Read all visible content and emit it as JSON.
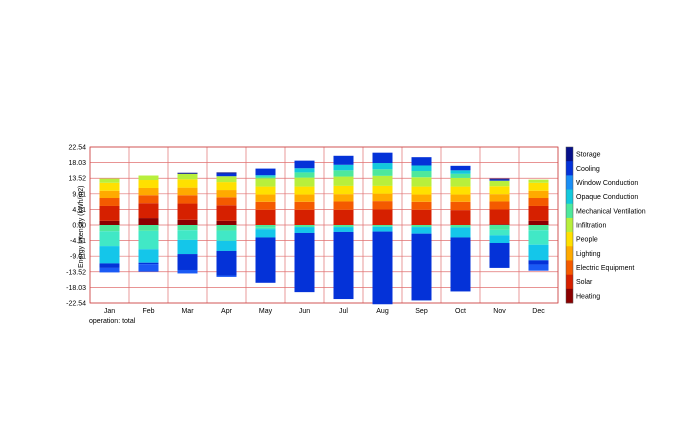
{
  "chart_data": {
    "type": "bar",
    "stacked": true,
    "ylabel": "Energy Intensity (kWh/m2)",
    "xlabel": "operation: total",
    "yticks": [
      "22.54",
      "18.03",
      "13.52",
      "9.01",
      "4.51",
      "0.00",
      "-4.51",
      "-9.01",
      "-13.52",
      "-18.03",
      "-22.54"
    ],
    "ylim": [
      -22.54,
      22.54
    ],
    "grid": true,
    "legend_position": "right",
    "categories": [
      "Jan",
      "Feb",
      "Mar",
      "Apr",
      "May",
      "Jun",
      "Jul",
      "Aug",
      "Sep",
      "Oct",
      "Nov",
      "Dec"
    ],
    "series": [
      {
        "name": "Heating",
        "color": "#8b0000",
        "values": [
          1.2,
          2.0,
          1.5,
          1.2,
          0,
          0,
          0,
          0,
          0,
          0,
          0.2,
          1.2
        ]
      },
      {
        "name": "Solar",
        "color": "#d62000",
        "values": [
          4.3,
          4.3,
          4.7,
          4.5,
          4.4,
          4.4,
          4.4,
          4.5,
          4.4,
          4.3,
          4.3,
          4.3
        ]
      },
      {
        "name": "Electric Equipment",
        "color": "#f45a00",
        "values": [
          2.3,
          2.3,
          2.4,
          2.3,
          2.3,
          2.3,
          2.4,
          2.4,
          2.3,
          2.4,
          2.3,
          2.3
        ]
      },
      {
        "name": "Lighting",
        "color": "#ffaa00",
        "values": [
          2.1,
          2.1,
          2.2,
          2.1,
          2.1,
          2.1,
          2.1,
          2.1,
          2.1,
          2.1,
          2.1,
          2.1
        ]
      },
      {
        "name": "People",
        "color": "#ffe000",
        "values": [
          2.3,
          2.3,
          2.4,
          2.3,
          2.3,
          2.3,
          2.4,
          2.3,
          2.3,
          2.3,
          2.3,
          2.3
        ]
      },
      {
        "name": "Infiltration",
        "color": "#b8ef3c",
        "values": [
          1.2,
          1.3,
          1.6,
          1.7,
          2.4,
          2.6,
          2.7,
          2.9,
          2.7,
          2.5,
          1.6,
          0.9
        ]
      },
      {
        "name": "Mechanical Ventilation",
        "color": "#4ee89c",
        "values": [
          0,
          0,
          0,
          0,
          0.5,
          1.5,
          1.8,
          1.9,
          1.8,
          1.2,
          0,
          0
        ]
      },
      {
        "name": "Opaque Conduction",
        "color": "#13c9dc",
        "values": [
          0,
          0,
          0,
          0,
          0.4,
          1.2,
          1.6,
          1.8,
          1.6,
          1.0,
          0,
          0
        ]
      },
      {
        "name": "Window Conduction",
        "color": "#1a8ef5",
        "values": [
          0,
          0,
          0,
          0,
          0,
          0,
          0,
          0,
          0,
          0,
          0,
          0
        ]
      },
      {
        "name": "Cooling",
        "color": "#0432d8",
        "values": [
          0,
          0,
          0,
          0.8,
          1.9,
          2.2,
          2.6,
          3.0,
          2.4,
          1.3,
          0.3,
          0
        ]
      },
      {
        "name": "Storage",
        "color": "#06108a",
        "values": [
          0,
          0,
          0.3,
          0.3,
          0,
          0,
          0,
          0,
          0,
          0,
          0.3,
          0
        ]
      }
    ],
    "negative_series": [
      {
        "name": "Mechanical Ventilation",
        "color": "#4ee89c",
        "values": [
          -1.8,
          -1.7,
          -1.5,
          -1.6,
          -0.8,
          -0.6,
          -0.6,
          -0.5,
          -0.6,
          -0.7,
          -1.4,
          -1.5
        ]
      },
      {
        "name": "Opaque Conduction",
        "color": "#41e8c6",
        "values": [
          -4.3,
          -5.3,
          -2.8,
          -3.0,
          -0.4,
          0,
          0,
          0,
          0,
          0,
          -1.6,
          -4.2
        ]
      },
      {
        "name": "Window Conduction",
        "color": "#14c6ea",
        "values": [
          -5.0,
          -3.9,
          -4.1,
          -2.9,
          -2.4,
          -1.7,
          -1.4,
          -1.4,
          -1.9,
          -2.9,
          -2.2,
          -4.5
        ]
      },
      {
        "name": "Cooling",
        "color": "#0432d8",
        "values": [
          -1.3,
          -0.4,
          -4.6,
          -7.1,
          -13.1,
          -17.1,
          -19.4,
          -21.0,
          -19.3,
          -15.6,
          -7.2,
          -1.2
        ]
      },
      {
        "name": "Storage",
        "color": "#1a5af5",
        "values": [
          -1.3,
          -2.2,
          -1.0,
          -0.4,
          0,
          0,
          0,
          0,
          0,
          0,
          0,
          -1.8
        ]
      }
    ],
    "legend_items": [
      {
        "label": "Storage",
        "color": "#06108a"
      },
      {
        "label": "Cooling",
        "color": "#0432d8"
      },
      {
        "label": "Window Conduction",
        "color": "#1a8ef5"
      },
      {
        "label": "Opaque Conduction",
        "color": "#13c9dc"
      },
      {
        "label": "Mechanical Ventilation",
        "color": "#4ee89c"
      },
      {
        "label": "Infiltration",
        "color": "#b8ef3c"
      },
      {
        "label": "People",
        "color": "#ffe000"
      },
      {
        "label": "Lighting",
        "color": "#ffaa00"
      },
      {
        "label": "Electric Equipment",
        "color": "#f45a00"
      },
      {
        "label": "Solar",
        "color": "#d62000"
      },
      {
        "label": "Heating",
        "color": "#8b0000"
      }
    ]
  }
}
